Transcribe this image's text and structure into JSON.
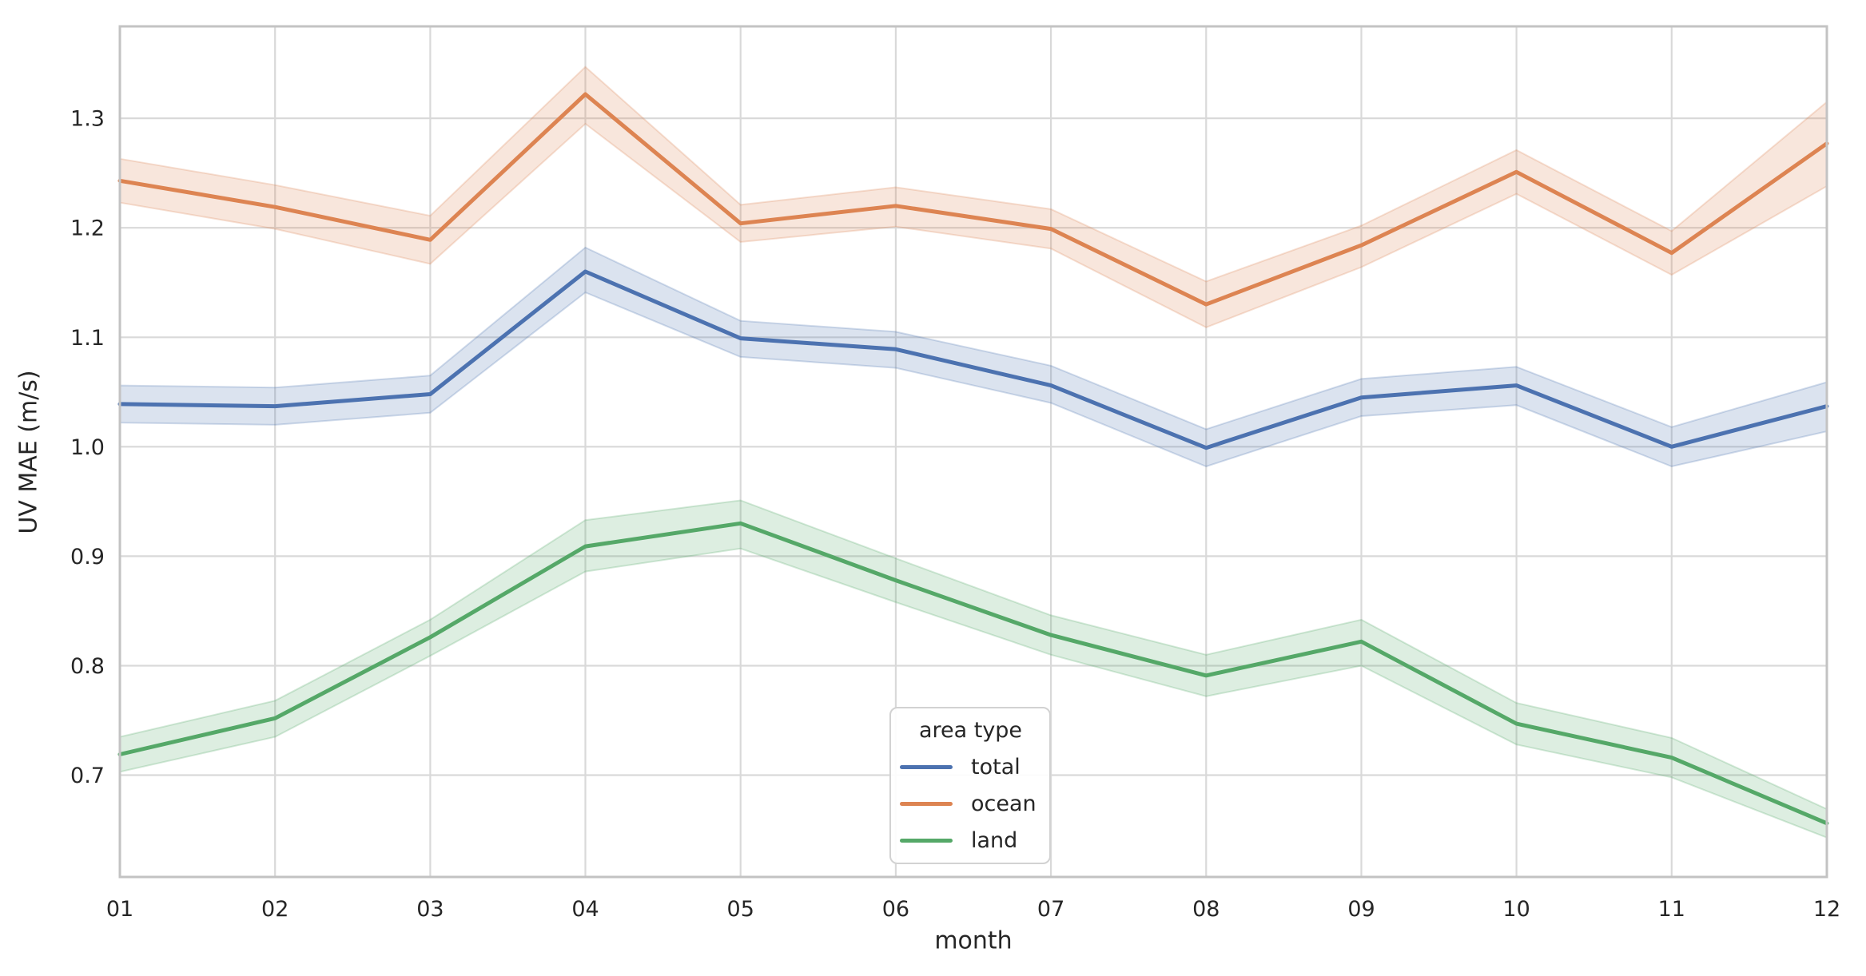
{
  "chart_data": {
    "type": "line",
    "xlabel": "month",
    "ylabel": "UV MAE (m/s)",
    "categories": [
      "01",
      "02",
      "03",
      "04",
      "05",
      "06",
      "07",
      "08",
      "09",
      "10",
      "11",
      "12"
    ],
    "y_tick_labels": [
      "0.7",
      "0.8",
      "0.9",
      "1.0",
      "1.1",
      "1.2",
      "1.3"
    ],
    "y_ticks": [
      0.7,
      0.8,
      0.9,
      1.0,
      1.1,
      1.2,
      1.3
    ],
    "ylim": [
      0.607,
      1.384
    ],
    "grid": true,
    "legend": {
      "title": "area type",
      "position": "lower-center-right"
    },
    "series": [
      {
        "name": "total",
        "color": "#4c72b0",
        "values": [
          1.039,
          1.037,
          1.048,
          1.16,
          1.099,
          1.089,
          1.056,
          0.999,
          1.045,
          1.056,
          1.0,
          1.037
        ],
        "band_lo": [
          1.022,
          1.02,
          1.031,
          1.141,
          1.082,
          1.072,
          1.04,
          0.982,
          1.028,
          1.038,
          0.982,
          1.014
        ],
        "band_hi": [
          1.056,
          1.054,
          1.065,
          1.182,
          1.115,
          1.105,
          1.074,
          1.016,
          1.062,
          1.073,
          1.018,
          1.059
        ]
      },
      {
        "name": "ocean",
        "color": "#dd8452",
        "values": [
          1.243,
          1.219,
          1.189,
          1.322,
          1.204,
          1.22,
          1.199,
          1.13,
          1.184,
          1.251,
          1.177,
          1.277
        ],
        "band_lo": [
          1.223,
          1.199,
          1.167,
          1.295,
          1.187,
          1.201,
          1.181,
          1.109,
          1.164,
          1.231,
          1.157,
          1.238
        ],
        "band_hi": [
          1.263,
          1.239,
          1.211,
          1.347,
          1.221,
          1.237,
          1.217,
          1.151,
          1.202,
          1.271,
          1.197,
          1.315
        ]
      },
      {
        "name": "land",
        "color": "#55a868",
        "values": [
          0.719,
          0.752,
          0.826,
          0.909,
          0.93,
          0.878,
          0.828,
          0.791,
          0.822,
          0.747,
          0.716,
          0.656
        ],
        "band_lo": [
          0.703,
          0.735,
          0.809,
          0.886,
          0.907,
          0.858,
          0.81,
          0.772,
          0.8,
          0.728,
          0.698,
          0.643
        ],
        "band_hi": [
          0.735,
          0.768,
          0.842,
          0.933,
          0.951,
          0.898,
          0.846,
          0.81,
          0.842,
          0.766,
          0.734,
          0.669
        ]
      }
    ],
    "style": {
      "background": "#ffffff",
      "grid_color": "#d9d9d9",
      "spine_color": "#c3c3c3",
      "text_color": "#262626",
      "band_alpha": 0.2
    }
  }
}
